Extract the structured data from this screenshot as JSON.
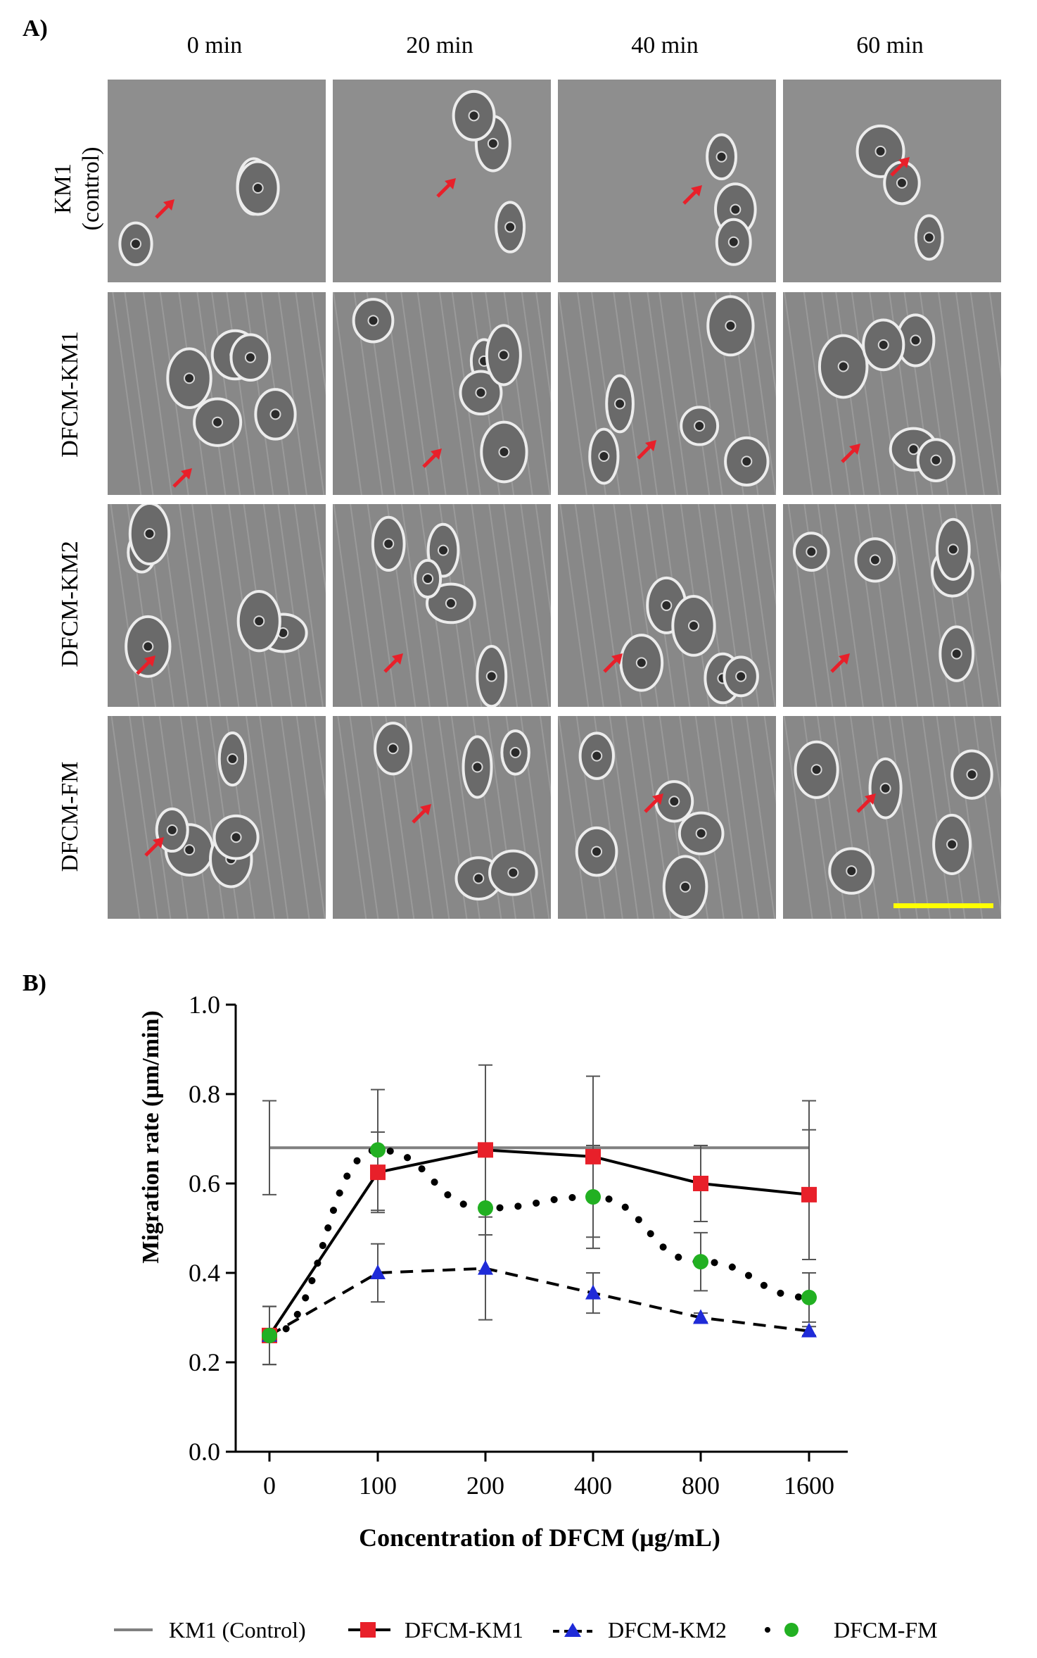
{
  "panel_a": {
    "label": "A)",
    "times": [
      "0 min",
      "20 min",
      "40 min",
      "60 min"
    ],
    "rows": [
      {
        "label_line1": "KM1",
        "label_line2": "(control)"
      },
      {
        "label_line1": "DFCM-KM1",
        "label_line2": ""
      },
      {
        "label_line1": "DFCM-KM2",
        "label_line2": ""
      },
      {
        "label_line1": "DFCM-FM",
        "label_line2": ""
      }
    ],
    "arrow_color": "#e8202a",
    "scalebar_color": "#ffff00"
  },
  "panel_b": {
    "label": "B)"
  },
  "chart_data": {
    "type": "line",
    "xlabel": "Concentration of DFCM (µg/mL)",
    "ylabel": "Migration rate (µm/min)",
    "categories": [
      "0",
      "100",
      "200",
      "400",
      "800",
      "1600"
    ],
    "ylim": [
      0.0,
      1.0
    ],
    "yticks": [
      "0.0",
      "0.2",
      "0.4",
      "0.6",
      "0.8",
      "1.0"
    ],
    "control": {
      "name": "KM1 (Control)",
      "value": 0.68,
      "err": 0.105,
      "color": "#808080"
    },
    "series": [
      {
        "name": "DFCM-KM1",
        "color": "#e8202a",
        "marker": "square",
        "line": "solid",
        "values": [
          0.26,
          0.625,
          0.675,
          0.66,
          0.6,
          0.575
        ],
        "errors": [
          0.065,
          0.09,
          0.19,
          0.18,
          0.085,
          0.145
        ]
      },
      {
        "name": "DFCM-KM2",
        "color": "#1f2bd8",
        "marker": "triangle",
        "line": "dashed",
        "values": [
          0.26,
          0.4,
          0.41,
          0.355,
          0.3,
          0.27
        ],
        "errors": [
          0.065,
          0.065,
          0.115,
          0.045,
          0.01,
          0.01
        ]
      },
      {
        "name": "DFCM-FM",
        "color": "#22b022",
        "marker": "circle",
        "line": "dotted",
        "values": [
          0.26,
          0.675,
          0.545,
          0.57,
          0.425,
          0.345
        ],
        "errors": [
          0.065,
          0.135,
          0.14,
          0.115,
          0.065,
          0.055
        ]
      }
    ]
  }
}
